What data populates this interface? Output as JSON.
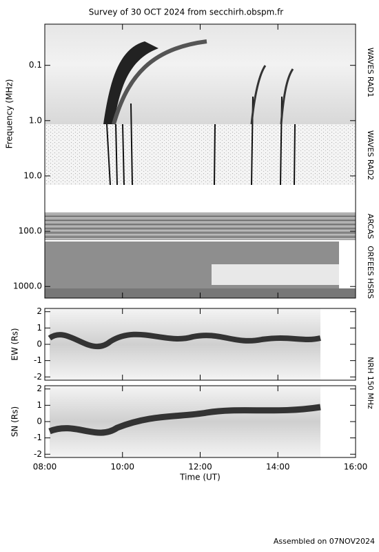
{
  "chart_data": [
    {
      "type": "spectrogram",
      "title": "Survey of 30 OCT 2024 from secchirh.obspm.fr",
      "ylabel": "Frequency (MHz)",
      "log_scale": true,
      "ylim": [
        0.018,
        1620
      ],
      "yticks": [
        0.1,
        {
          "value": 1,
          "label": "1.0"
        },
        {
          "value": 10,
          "label": "10.0"
        },
        {
          "value": 100,
          "label": "100.0"
        },
        {
          "value": 1000,
          "label": "1000.0"
        }
      ],
      "instruments": [
        "WAVES RAD1",
        "WAVES RAD2",
        "ARCAS",
        "ORFEES",
        "HSRS"
      ]
    },
    {
      "type": "heatmap",
      "ylabel": "EW (Rs)",
      "ylim": [
        -2.2,
        2.2
      ],
      "yticks": [
        2,
        1,
        0,
        -1,
        -2
      ]
    },
    {
      "type": "heatmap",
      "ylabel": "SN (Rs)",
      "ylim": [
        -2.2,
        2.2
      ],
      "yticks": [
        2,
        1,
        0,
        -1,
        -2
      ],
      "instrument": "NRH 150 MHz",
      "xlabel": "Time (UT)",
      "xlim": [
        8,
        16
      ],
      "xticks": [
        {
          "value": 8,
          "label": "08:00"
        },
        {
          "value": 10,
          "label": "10:00"
        },
        {
          "value": 12,
          "label": "12:00"
        },
        {
          "value": 14,
          "label": "14:00"
        },
        {
          "value": 16,
          "label": "16:00"
        }
      ]
    }
  ],
  "footer": "Assembled on 07NOV2024"
}
